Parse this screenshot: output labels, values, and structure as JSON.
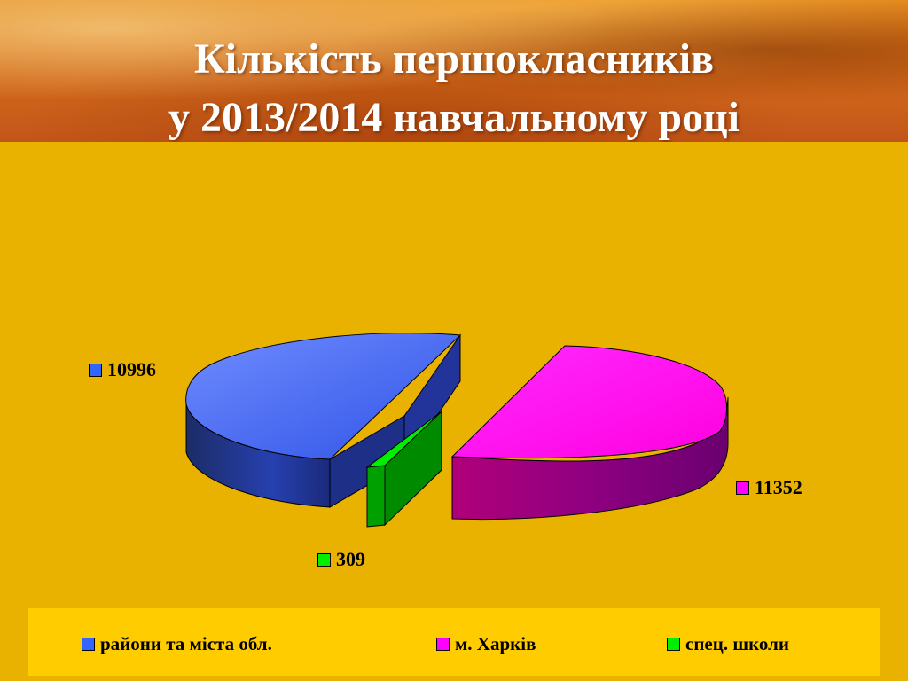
{
  "title_line1": "Кількість першокласників",
  "title_line2": "у 2013/2014 навчальному році",
  "colors": {
    "blue": "#3366ff",
    "magenta": "#ff00ff",
    "green": "#00ee00",
    "background": "#e9b200",
    "legend_bg": "#ffcc00"
  },
  "chart_data": {
    "type": "pie",
    "title": "Кількість першокласників у 2013/2014 навчальному році",
    "categories": [
      "райони та міста обл.",
      "м. Харків",
      "спец. школи"
    ],
    "values": [
      10996,
      11352,
      309
    ],
    "data_labels": [
      "10996",
      "11352",
      "309"
    ],
    "colors": [
      "#3366ff",
      "#ff00ff",
      "#00ee00"
    ],
    "exploded": true,
    "style": "3d",
    "legend_position": "bottom"
  }
}
